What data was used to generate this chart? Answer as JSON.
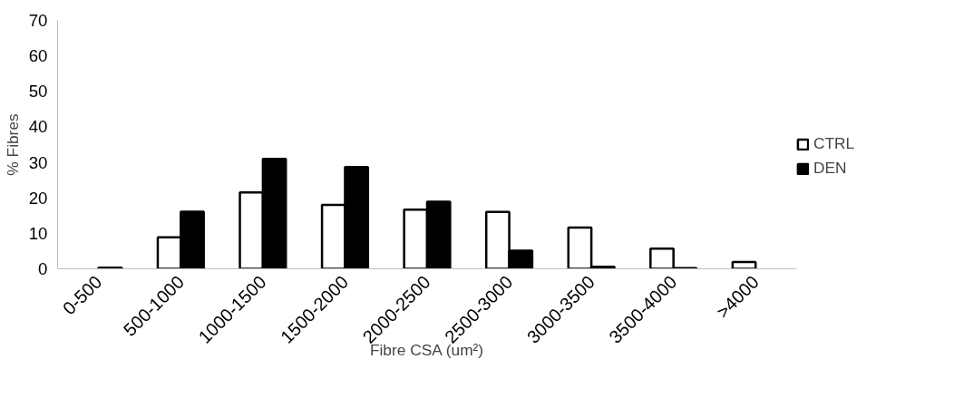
{
  "chart_data": {
    "type": "bar",
    "xlabel": "Fibre CSA (um²)",
    "ylabel": "% Fibres",
    "categories": [
      "0-500",
      "500-1000",
      "1000-1500",
      "1500-2000",
      "2000-2500",
      "2500-3000",
      "3000-3500",
      "3500-4000",
      ">4000"
    ],
    "series": [
      {
        "name": "CTRL",
        "color": "#ffffff",
        "values": [
          0,
          8.9,
          21.5,
          18.0,
          16.7,
          16.0,
          11.6,
          5.7,
          1.9
        ]
      },
      {
        "name": "DEN",
        "color": "#000000",
        "values": [
          0.3,
          16.1,
          31.0,
          28.7,
          18.9,
          5.1,
          0.6,
          0.2,
          0
        ]
      }
    ],
    "ylim": [
      0,
      70
    ],
    "yticks": [
      0,
      10,
      20,
      30,
      40,
      50,
      60,
      70
    ],
    "grid": false,
    "legend": "right"
  }
}
